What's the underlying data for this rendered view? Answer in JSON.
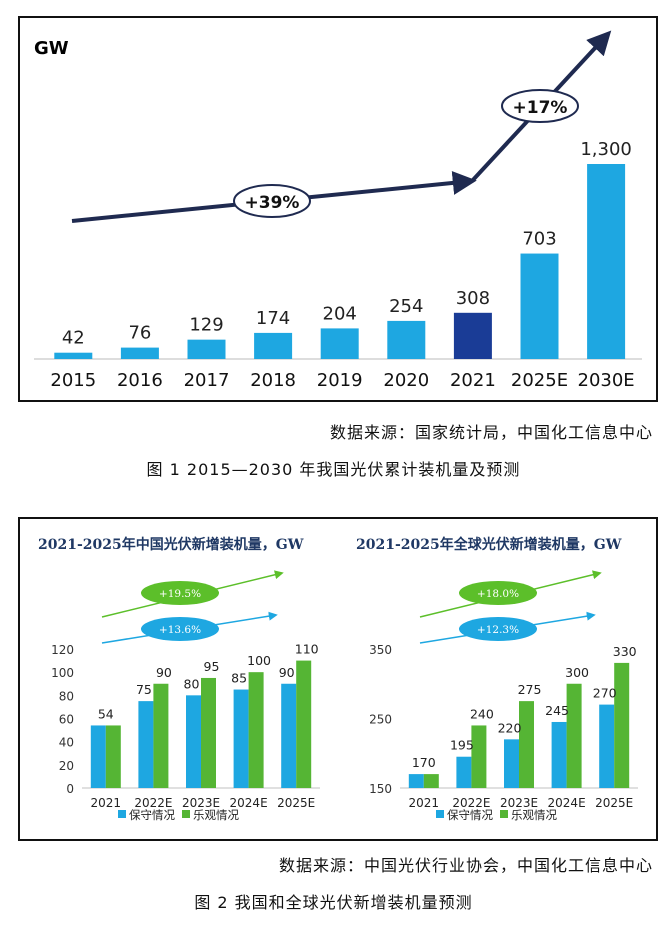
{
  "figure1": {
    "unit_label": "GW",
    "source": "数据来源：国家统计局，中国化工信息中心",
    "caption": "图 1  2015—2030 年我国光伏累计装机量及预测",
    "chart_data": {
      "type": "bar",
      "categories": [
        "2015",
        "2016",
        "2017",
        "2018",
        "2019",
        "2020",
        "2021",
        "2025E",
        "2030E"
      ],
      "values": [
        42,
        76,
        129,
        174,
        204,
        254,
        308,
        703,
        1300
      ],
      "value_labels": [
        "42",
        "76",
        "129",
        "174",
        "204",
        "254",
        "308",
        "703",
        "1,300"
      ],
      "ylim": [
        0,
        1300
      ],
      "highlight_category": "2021",
      "annotations": [
        "+39%",
        "+17%"
      ],
      "colors": {
        "bar": "#1ea7e1",
        "highlight": "#1a3c96",
        "arrow": "#1f2a50"
      }
    }
  },
  "figure2": {
    "source": "数据来源：中国光伏行业协会，中国化工信息中心",
    "caption": "图 2  我国和全球光伏新增装机量预测",
    "chart_data": [
      {
        "type": "bar",
        "title": "2021-2025年中国光伏新增装机量，GW",
        "categories": [
          "2021",
          "2022E",
          "2023E",
          "2024E",
          "2025E"
        ],
        "ylim": [
          0,
          120
        ],
        "yticks": [
          0,
          20,
          40,
          60,
          80,
          100,
          120
        ],
        "series": [
          {
            "name": "保守情况",
            "values": [
              54,
              75,
              80,
              85,
              90
            ],
            "color": "#1ea7e1"
          },
          {
            "name": "乐观情况",
            "values": [
              54,
              90,
              95,
              100,
              110
            ],
            "color": "#55b534"
          }
        ],
        "value_labels": [
          {
            "x": "2021",
            "text": "54"
          },
          {
            "x": "2022E",
            "text": "75",
            "series": 0
          },
          {
            "x": "2022E",
            "text": "90",
            "series": 1
          },
          {
            "x": "2023E",
            "text": "80",
            "series": 0
          },
          {
            "x": "2023E",
            "text": "95",
            "series": 1
          },
          {
            "x": "2024E",
            "text": "85",
            "series": 0
          },
          {
            "x": "2024E",
            "text": "100",
            "series": 1
          },
          {
            "x": "2025E",
            "text": "90",
            "series": 0
          },
          {
            "x": "2025E",
            "text": "110",
            "series": 1
          }
        ],
        "annotations": [
          {
            "text": "+19.5%",
            "series": "乐观情况"
          },
          {
            "text": "+13.6%",
            "series": "保守情况"
          }
        ],
        "legend": "bottom"
      },
      {
        "type": "bar",
        "title": "2021-2025年全球光伏新增装机量，GW",
        "categories": [
          "2021",
          "2022E",
          "2023E",
          "2024E",
          "2025E"
        ],
        "ylim": [
          150,
          350
        ],
        "yticks": [
          150,
          250,
          350
        ],
        "series": [
          {
            "name": "保守情况",
            "values": [
              170,
              195,
              220,
              245,
              270
            ],
            "color": "#1ea7e1"
          },
          {
            "name": "乐观情况",
            "values": [
              170,
              240,
              275,
              300,
              330
            ],
            "color": "#55b534"
          }
        ],
        "value_labels": [
          {
            "x": "2021",
            "text": "170"
          },
          {
            "x": "2022E",
            "text": "195",
            "series": 0
          },
          {
            "x": "2022E",
            "text": "240",
            "series": 1
          },
          {
            "x": "2023E",
            "text": "220",
            "series": 0
          },
          {
            "x": "2023E",
            "text": "275",
            "series": 1
          },
          {
            "x": "2024E",
            "text": "245",
            "series": 0
          },
          {
            "x": "2024E",
            "text": "300",
            "series": 1
          },
          {
            "x": "2025E",
            "text": "270",
            "series": 0
          },
          {
            "x": "2025E",
            "text": "330",
            "series": 1
          }
        ],
        "annotations": [
          {
            "text": "+18.0%",
            "series": "乐观情况"
          },
          {
            "text": "+12.3%",
            "series": "保守情况"
          }
        ],
        "legend": "bottom"
      }
    ]
  }
}
